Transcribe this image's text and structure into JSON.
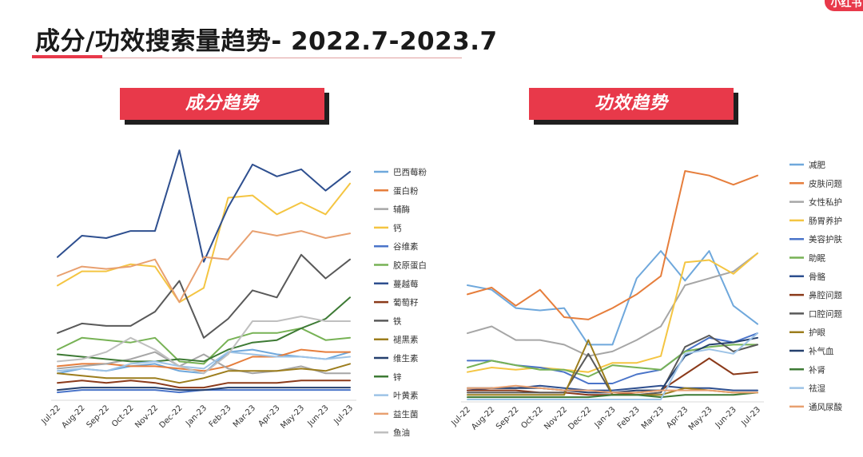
{
  "page": {
    "title": "成分/功效搜索量趋势- 2022.7-2023.7",
    "brand": "小红书"
  },
  "colors": {
    "accent": "#e8394a",
    "banner_shadow": "#1f1f1f"
  },
  "chart_data": [
    {
      "type": "line",
      "title": "成分趋势",
      "categories": [
        "Jul-22",
        "Aug-22",
        "Sep-22",
        "Oct-22",
        "Nov-22",
        "Dec-22",
        "Jan-23",
        "Feb-23",
        "Mar-23",
        "Apr-23",
        "May-23",
        "Jun-23",
        "Jul-23"
      ],
      "ylim": [
        0,
        100
      ],
      "grid": false,
      "legend": "right",
      "series": [
        {
          "name": "巴西莓粉",
          "color": "#6fa8dc",
          "values": [
            10,
            12,
            11,
            13,
            14,
            11,
            10,
            19,
            20,
            18,
            17,
            16,
            19
          ]
        },
        {
          "name": "蛋白粉",
          "color": "#e67e3c",
          "values": [
            13,
            14,
            14,
            13,
            13,
            12,
            11,
            13,
            17,
            17,
            20,
            19,
            19
          ]
        },
        {
          "name": "辅酶",
          "color": "#a6a6a6",
          "values": [
            12,
            13,
            14,
            16,
            19,
            13,
            18,
            12,
            10,
            11,
            13,
            10,
            10
          ]
        },
        {
          "name": "钙",
          "color": "#f4c542",
          "values": [
            47,
            53,
            53,
            56,
            55,
            40,
            46,
            84,
            85,
            77,
            82,
            77,
            90
          ]
        },
        {
          "name": "谷维素",
          "color": "#4a74c9",
          "values": [
            2,
            3,
            3,
            3,
            3,
            2,
            3,
            3,
            3,
            3,
            3,
            3,
            3
          ]
        },
        {
          "name": "胶原蛋白",
          "color": "#77b255",
          "values": [
            20,
            25,
            24,
            23,
            25,
            15,
            14,
            24,
            27,
            27,
            29,
            24,
            25
          ]
        },
        {
          "name": "蔓越莓",
          "color": "#2e4f8f",
          "values": [
            59,
            68,
            67,
            70,
            70,
            104,
            57,
            80,
            98,
            93,
            96,
            87,
            95
          ]
        },
        {
          "name": "葡萄籽",
          "color": "#8b3a1a",
          "values": [
            6,
            7,
            6,
            7,
            6,
            4,
            4,
            6,
            6,
            6,
            7,
            7,
            7
          ]
        },
        {
          "name": "铁",
          "color": "#595959",
          "values": [
            27,
            31,
            30,
            30,
            36,
            49,
            25,
            33,
            45,
            42,
            60,
            50,
            58
          ]
        },
        {
          "name": "褪黑素",
          "color": "#9c7d1d",
          "values": [
            10,
            9,
            8,
            8,
            8,
            6,
            8,
            11,
            11,
            11,
            12,
            11,
            14
          ]
        },
        {
          "name": "维生素",
          "color": "#25406e",
          "values": [
            3,
            4,
            4,
            4,
            4,
            3,
            3,
            4,
            4,
            4,
            4,
            4,
            4
          ]
        },
        {
          "name": "锌",
          "color": "#3d7a34",
          "values": [
            18,
            17,
            16,
            15,
            15,
            16,
            15,
            20,
            23,
            24,
            29,
            33,
            42
          ]
        },
        {
          "name": "叶黄素",
          "color": "#9dc3e6",
          "values": [
            11,
            12,
            11,
            14,
            15,
            13,
            12,
            19,
            18,
            17,
            17,
            16,
            17
          ]
        },
        {
          "name": "益生菌",
          "color": "#e8a070",
          "values": [
            51,
            55,
            54,
            55,
            58,
            40,
            59,
            58,
            70,
            68,
            70,
            67,
            69
          ]
        },
        {
          "name": "鱼油",
          "color": "#bfbfbf",
          "values": [
            15,
            16,
            19,
            25,
            20,
            13,
            10,
            18,
            32,
            32,
            34,
            32,
            32
          ]
        }
      ]
    },
    {
      "type": "line",
      "title": "功效趋势",
      "categories": [
        "Jul-22",
        "Aug-22",
        "Sep-22",
        "Oct-22",
        "Nov-22",
        "Dec-22",
        "Jan-23",
        "Feb-23",
        "Mar-23",
        "Apr-23",
        "May-23",
        "Jun-23",
        "Jul-23"
      ],
      "ylim": [
        0,
        100
      ],
      "grid": false,
      "legend": "right",
      "series": [
        {
          "name": "减肥",
          "color": "#6fa8dc",
          "values": [
            50,
            48,
            40,
            39,
            40,
            24,
            24,
            53,
            65,
            52,
            65,
            41,
            33
          ]
        },
        {
          "name": "皮肤问题",
          "color": "#e67e3c",
          "values": [
            46,
            49,
            41,
            48,
            36,
            35,
            40,
            46,
            54,
            100,
            98,
            94,
            98
          ]
        },
        {
          "name": "女性私护",
          "color": "#a6a6a6",
          "values": [
            29,
            32,
            26,
            26,
            24,
            19,
            21,
            26,
            32,
            50,
            53,
            56,
            64
          ]
        },
        {
          "name": "肠胃养护",
          "color": "#f4c542",
          "values": [
            12,
            14,
            13,
            14,
            13,
            12,
            16,
            16,
            19,
            60,
            61,
            55,
            64
          ]
        },
        {
          "name": "美容护肤",
          "color": "#4a74c9",
          "values": [
            17,
            17,
            15,
            14,
            12,
            7,
            7,
            11,
            13,
            21,
            27,
            25,
            29
          ]
        },
        {
          "name": "助眠",
          "color": "#77b255",
          "values": [
            14,
            17,
            15,
            13,
            13,
            10,
            15,
            14,
            13,
            21,
            23,
            24,
            24
          ]
        },
        {
          "name": "骨骼",
          "color": "#2e4f8f",
          "values": [
            4,
            5,
            5,
            6,
            5,
            4,
            4,
            5,
            6,
            5,
            5,
            4,
            4
          ]
        },
        {
          "name": "鼻腔问题",
          "color": "#8b3a1a",
          "values": [
            4,
            4,
            4,
            3,
            3,
            2,
            2,
            3,
            4,
            11,
            18,
            11,
            12
          ]
        },
        {
          "name": "口腔问题",
          "color": "#595959",
          "values": [
            3,
            3,
            3,
            3,
            3,
            20,
            2,
            2,
            3,
            23,
            28,
            21,
            24
          ]
        },
        {
          "name": "护眼",
          "color": "#9c7d1d",
          "values": [
            2,
            2,
            2,
            2,
            2,
            26,
            2,
            2,
            2,
            5,
            4,
            3,
            3
          ]
        },
        {
          "name": "补气血",
          "color": "#25406e",
          "values": [
            5,
            5,
            5,
            5,
            4,
            3,
            3,
            4,
            4,
            19,
            24,
            25,
            27
          ]
        },
        {
          "name": "补肾",
          "color": "#3d7a34",
          "values": [
            1,
            1,
            1,
            1,
            1,
            1,
            2,
            2,
            1,
            2,
            2,
            2,
            3
          ]
        },
        {
          "name": "祛湿",
          "color": "#9dc3e6",
          "values": [
            0,
            0,
            0,
            0,
            0,
            0,
            0,
            0,
            0,
            20,
            22,
            20,
            29
          ]
        },
        {
          "name": "通风尿酸",
          "color": "#e8a070",
          "values": [
            5,
            5,
            6,
            5,
            4,
            4,
            3,
            3,
            4,
            4,
            4,
            3,
            3
          ]
        }
      ]
    }
  ]
}
